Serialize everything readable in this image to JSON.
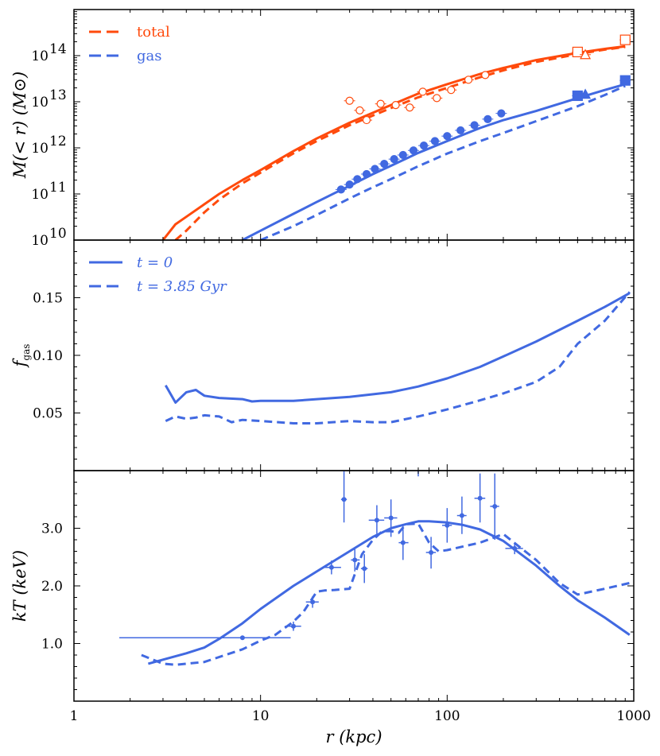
{
  "colors": {
    "total": "#ff4a0c",
    "gas": "#4169e1",
    "axis": "#000000"
  },
  "chart_data": [
    {
      "type": "line",
      "ylabel": "M(< r) (M⊙)",
      "xlabel": "",
      "x_scale": "log",
      "y_scale": "log",
      "xlim": [
        1,
        1000
      ],
      "ylim": [
        10000000000.0,
        1000000000000000.0
      ],
      "y_ticks": [
        {
          "v": 10000000000.0,
          "label": "10"
        },
        {
          "v": 100000000000.0,
          "label": "10"
        },
        {
          "v": 1000000000000.0,
          "label": "10"
        },
        {
          "v": 10000000000000.0,
          "label": "10"
        },
        {
          "v": 100000000000000.0,
          "label": "10"
        }
      ],
      "y_tick_exps": [
        "10",
        "11",
        "12",
        "13",
        "14"
      ],
      "legend": {
        "position": "top-left",
        "entries": [
          {
            "label": "total",
            "color": "#ff4a0c"
          },
          {
            "label": "gas",
            "color": "#4169e1"
          }
        ]
      },
      "series": [
        {
          "name": "total",
          "style": "solid",
          "color": "#ff4a0c",
          "x": [
            3,
            3.5,
            4,
            5,
            6,
            8,
            10,
            15,
            20,
            30,
            50,
            70,
            100,
            150,
            200,
            300,
            500,
            700,
            900
          ],
          "y": [
            10000000000.0,
            22000000000.0,
            32000000000.0,
            60000000000.0,
            100000000000.0,
            200000000000.0,
            330000000000.0,
            850000000000.0,
            1600000000000.0,
            3500000000000.0,
            8500000000000.0,
            15000000000000.0,
            24000000000000.0,
            40000000000000.0,
            54000000000000.0,
            80000000000000.0,
            115000000000000.0,
            140000000000000.0,
            160000000000000.0
          ]
        },
        {
          "name": "total",
          "style": "dashed",
          "color": "#ff4a0c",
          "x": [
            3.5,
            4,
            5,
            6,
            8,
            10,
            15,
            20,
            30,
            50,
            70,
            100,
            150,
            200,
            300,
            500,
            700,
            900
          ],
          "y": [
            10000000000.0,
            16000000000.0,
            40000000000.0,
            75000000000.0,
            170000000000.0,
            290000000000.0,
            760000000000.0,
            1400000000000.0,
            3100000000000.0,
            7300000000000.0,
            12500000000000.0,
            20000000000000.0,
            34000000000000.0,
            48000000000000.0,
            73000000000000.0,
            108000000000000.0,
            135000000000000.0,
            155000000000000.0
          ]
        },
        {
          "name": "gas",
          "style": "solid",
          "color": "#4169e1",
          "x": [
            8,
            10,
            15,
            20,
            25,
            30,
            40,
            50,
            70,
            100,
            150,
            200,
            300,
            500,
            700,
            900
          ],
          "y": [
            10000000000.0,
            16000000000.0,
            37000000000.0,
            67000000000.0,
            105000000000.0,
            150000000000.0,
            270000000000.0,
            410000000000.0,
            780000000000.0,
            1400000000000.0,
            2700000000000.0,
            4000000000000.0,
            6300000000000.0,
            12000000000000.0,
            18000000000000.0,
            24000000000000.0
          ]
        },
        {
          "name": "gas",
          "style": "dashed",
          "color": "#4169e1",
          "x": [
            10,
            15,
            20,
            30,
            40,
            50,
            70,
            100,
            150,
            200,
            300,
            500,
            700,
            900
          ],
          "y": [
            10000000000.0,
            20000000000.0,
            35000000000.0,
            80000000000.0,
            140000000000.0,
            210000000000.0,
            400000000000.0,
            750000000000.0,
            1400000000000.0,
            2100000000000.0,
            3800000000000.0,
            8000000000000.0,
            14000000000000.0,
            22000000000000.0
          ]
        }
      ],
      "markers": [
        {
          "group": "total",
          "shape": "open-circle",
          "points": [
            {
              "x": 30,
              "y": 10500000000000.0
            },
            {
              "x": 34,
              "y": 6500000000000.0
            },
            {
              "x": 37,
              "y": 4000000000000.0
            },
            {
              "x": 44,
              "y": 9000000000000.0
            },
            {
              "x": 53,
              "y": 8500000000000.0
            },
            {
              "x": 63,
              "y": 7500000000000.0
            },
            {
              "x": 74,
              "y": 16500000000000.0
            },
            {
              "x": 88,
              "y": 12000000000000.0
            },
            {
              "x": 105,
              "y": 18000000000000.0
            },
            {
              "x": 130,
              "y": 30000000000000.0
            },
            {
              "x": 160,
              "y": 38000000000000.0
            }
          ]
        },
        {
          "group": "total",
          "shape": "open-square",
          "points": [
            {
              "x": 500,
              "y": 120000000000000.0
            },
            {
              "x": 900,
              "y": 220000000000000.0
            }
          ]
        },
        {
          "group": "total",
          "shape": "open-triangle",
          "points": [
            {
              "x": 550,
              "y": 105000000000000.0
            }
          ]
        },
        {
          "group": "gas",
          "shape": "filled-circle",
          "points": [
            {
              "x": 27,
              "y": 125000000000.0
            },
            {
              "x": 30,
              "y": 160000000000.0
            },
            {
              "x": 33,
              "y": 210000000000.0
            },
            {
              "x": 37,
              "y": 270000000000.0
            },
            {
              "x": 41,
              "y": 350000000000.0
            },
            {
              "x": 46,
              "y": 450000000000.0
            },
            {
              "x": 52,
              "y": 570000000000.0
            },
            {
              "x": 58,
              "y": 700000000000.0
            },
            {
              "x": 66,
              "y": 880000000000.0
            },
            {
              "x": 75,
              "y": 1120000000000.0
            },
            {
              "x": 86,
              "y": 1400000000000.0
            },
            {
              "x": 100,
              "y": 1800000000000.0
            },
            {
              "x": 118,
              "y": 2400000000000.0
            },
            {
              "x": 140,
              "y": 3100000000000.0
            },
            {
              "x": 165,
              "y": 4200000000000.0
            },
            {
              "x": 195,
              "y": 5600000000000.0
            }
          ]
        },
        {
          "group": "gas",
          "shape": "filled-square",
          "points": [
            {
              "x": 500,
              "y": 13500000000000.0
            },
            {
              "x": 900,
              "y": 29000000000000.0
            }
          ]
        },
        {
          "group": "gas",
          "shape": "filled-triangle",
          "points": [
            {
              "x": 550,
              "y": 14500000000000.0
            }
          ]
        }
      ]
    },
    {
      "type": "line",
      "ylabel": "f_gas",
      "ylabel_main": "f",
      "ylabel_sub": "gas",
      "xlabel": "",
      "x_scale": "log",
      "xlim": [
        1,
        1000
      ],
      "ylim": [
        0,
        0.2
      ],
      "y_ticks": [
        {
          "v": 0.05,
          "label": "0.05"
        },
        {
          "v": 0.1,
          "label": "0.10"
        },
        {
          "v": 0.15,
          "label": "0.15"
        }
      ],
      "legend": {
        "position": "top-left",
        "entries": [
          {
            "label": "t = 0",
            "color": "#4169e1",
            "style": "solid"
          },
          {
            "label": "t = 3.85 Gyr",
            "color": "#4169e1",
            "style": "dashed"
          }
        ]
      },
      "series": [
        {
          "name": "t = 0",
          "style": "solid",
          "color": "#4169e1",
          "x": [
            3.1,
            3.5,
            4,
            4.5,
            5,
            6,
            8,
            9,
            10,
            15,
            20,
            30,
            50,
            70,
            100,
            150,
            200,
            300,
            500,
            700,
            950
          ],
          "y": [
            0.074,
            0.059,
            0.068,
            0.07,
            0.065,
            0.063,
            0.062,
            0.06,
            0.0605,
            0.0605,
            0.062,
            0.064,
            0.068,
            0.073,
            0.08,
            0.09,
            0.099,
            0.112,
            0.13,
            0.142,
            0.154
          ]
        },
        {
          "name": "t = 3.85 Gyr",
          "style": "dashed",
          "color": "#4169e1",
          "x": [
            3.1,
            3.5,
            4,
            4.5,
            5,
            6,
            7,
            8,
            10,
            15,
            20,
            30,
            40,
            50,
            70,
            100,
            150,
            200,
            300,
            400,
            500,
            700,
            950
          ],
          "y": [
            0.043,
            0.047,
            0.045,
            0.046,
            0.048,
            0.047,
            0.042,
            0.044,
            0.043,
            0.041,
            0.041,
            0.043,
            0.042,
            0.042,
            0.047,
            0.053,
            0.061,
            0.067,
            0.077,
            0.09,
            0.11,
            0.13,
            0.155
          ]
        }
      ]
    },
    {
      "type": "line",
      "ylabel": "kT (keV)",
      "xlabel": "r (kpc)",
      "x_scale": "log",
      "xlim": [
        1,
        1000
      ],
      "ylim": [
        0,
        4
      ],
      "y_ticks": [
        {
          "v": 1,
          "label": "1.0"
        },
        {
          "v": 2,
          "label": "2.0"
        },
        {
          "v": 3,
          "label": "3.0"
        }
      ],
      "x_ticks": [
        {
          "v": 1,
          "label": "1"
        },
        {
          "v": 10,
          "label": "10"
        },
        {
          "v": 100,
          "label": "100"
        },
        {
          "v": 1000,
          "label": "1000"
        }
      ],
      "series": [
        {
          "name": "t = 0",
          "style": "solid",
          "color": "#4169e1",
          "x": [
            2.5,
            3,
            4,
            5,
            6,
            8,
            10,
            15,
            20,
            30,
            40,
            50,
            60,
            70,
            80,
            100,
            120,
            150,
            200,
            300,
            400,
            500,
            700,
            950
          ],
          "y": [
            0.65,
            0.72,
            0.83,
            0.93,
            1.08,
            1.35,
            1.6,
            2.0,
            2.25,
            2.6,
            2.85,
            3.0,
            3.07,
            3.12,
            3.12,
            3.1,
            3.06,
            2.98,
            2.78,
            2.35,
            2.0,
            1.75,
            1.45,
            1.15
          ]
        },
        {
          "name": "t = 3.85 Gyr",
          "style": "dashed",
          "color": "#4169e1",
          "x": [
            2.3,
            3,
            3.5,
            5,
            8,
            10,
            12,
            15,
            17,
            20,
            22,
            25,
            30,
            35,
            40,
            45,
            50,
            55,
            60,
            70,
            80,
            90,
            100,
            150,
            200,
            250,
            300,
            400,
            500,
            700,
            950
          ],
          "y": [
            0.8,
            0.65,
            0.63,
            0.68,
            0.9,
            1.05,
            1.15,
            1.38,
            1.55,
            1.9,
            1.92,
            1.93,
            1.95,
            2.55,
            2.8,
            2.95,
            2.95,
            2.92,
            3.07,
            3.08,
            2.75,
            2.6,
            2.62,
            2.75,
            2.9,
            2.65,
            2.45,
            2.05,
            1.85,
            1.95,
            2.05
          ]
        }
      ],
      "data_points": [
        {
          "x": 8,
          "y": 1.1,
          "xlo": 1.75,
          "xhi": 14.5,
          "ylo": 1.1,
          "yhi": 1.1
        },
        {
          "x": 15,
          "y": 1.3,
          "xlo": 13.5,
          "xhi": 16.5,
          "ylo": 1.22,
          "yhi": 1.38
        },
        {
          "x": 19,
          "y": 1.72,
          "xlo": 17.5,
          "xhi": 20.5,
          "ylo": 1.62,
          "yhi": 1.82
        },
        {
          "x": 24,
          "y": 2.32,
          "xlo": 21.5,
          "xhi": 27,
          "ylo": 2.2,
          "yhi": 2.44
        },
        {
          "x": 28,
          "y": 3.5,
          "xlo": 27,
          "xhi": 29,
          "ylo": 3.1,
          "yhi": 4.1
        },
        {
          "x": 32,
          "y": 2.45,
          "xlo": 30.5,
          "xhi": 34,
          "ylo": 2.25,
          "yhi": 2.65
        },
        {
          "x": 36,
          "y": 2.3,
          "xlo": 34.5,
          "xhi": 37.5,
          "ylo": 2.05,
          "yhi": 2.55
        },
        {
          "x": 42,
          "y": 3.14,
          "xlo": 38,
          "xhi": 46,
          "ylo": 2.9,
          "yhi": 3.4
        },
        {
          "x": 50,
          "y": 3.18,
          "xlo": 46,
          "xhi": 54,
          "ylo": 2.85,
          "yhi": 3.5
        },
        {
          "x": 58,
          "y": 2.75,
          "xlo": 55,
          "xhi": 62,
          "ylo": 2.45,
          "yhi": 3.05
        },
        {
          "x": 70,
          "y": 4.2,
          "xlo": 66,
          "xhi": 74,
          "ylo": 3.9,
          "yhi": 4.5
        },
        {
          "x": 82,
          "y": 2.58,
          "xlo": 77,
          "xhi": 87,
          "ylo": 2.3,
          "yhi": 2.85
        },
        {
          "x": 100,
          "y": 3.05,
          "xlo": 94,
          "xhi": 106,
          "ylo": 2.75,
          "yhi": 3.35
        },
        {
          "x": 120,
          "y": 3.22,
          "xlo": 113,
          "xhi": 127,
          "ylo": 2.9,
          "yhi": 3.55
        },
        {
          "x": 150,
          "y": 3.52,
          "xlo": 140,
          "xhi": 160,
          "ylo": 3.1,
          "yhi": 3.95
        },
        {
          "x": 180,
          "y": 3.38,
          "xlo": 170,
          "xhi": 190,
          "ylo": 2.8,
          "yhi": 3.95
        },
        {
          "x": 230,
          "y": 2.65,
          "xlo": 205,
          "xhi": 255,
          "ylo": 2.55,
          "yhi": 2.75
        }
      ]
    }
  ]
}
